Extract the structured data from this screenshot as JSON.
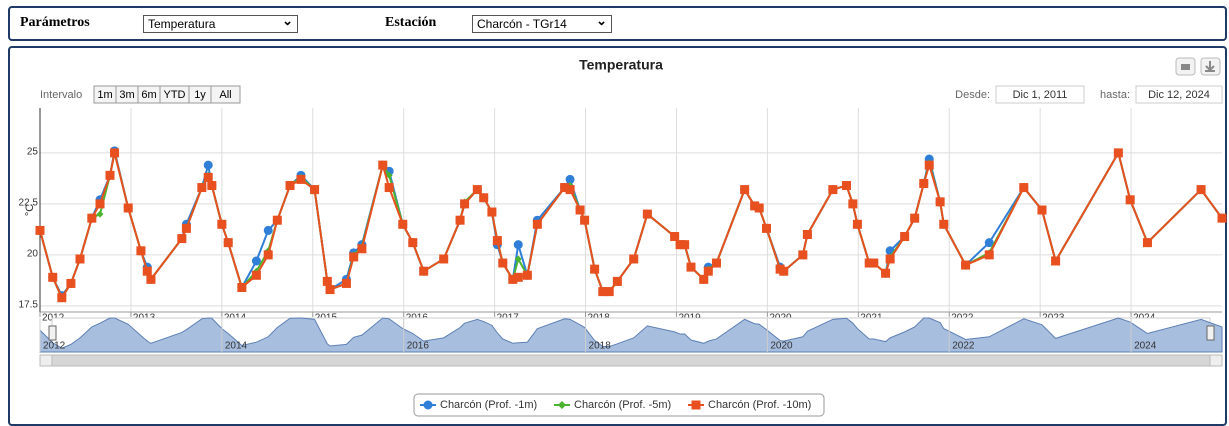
{
  "controls": {
    "param_label": "Parámetros",
    "param_value": "Temperatura",
    "station_label": "Estación",
    "station_value": "Charcón - TGr14"
  },
  "range_selector": {
    "label": "Intervalo",
    "buttons": [
      "1m",
      "3m",
      "6m",
      "YTD",
      "1y",
      "All"
    ],
    "from_label": "Desde:",
    "from_value": "Dic 1, 2011",
    "to_label": "hasta:",
    "to_value": "Dic 12, 2024"
  },
  "chart_data": {
    "type": "line",
    "title": "Temperatura",
    "y_label": "°C",
    "x": [
      2012.0,
      2012.14,
      2012.24,
      2012.34,
      2012.44,
      2012.57,
      2012.66,
      2012.77,
      2012.82,
      2012.97,
      2013.11,
      2013.18,
      2013.22,
      2013.56,
      2013.61,
      2013.78,
      2013.85,
      2013.89,
      2014.0,
      2014.07,
      2014.22,
      2014.38,
      2014.51,
      2014.61,
      2014.75,
      2014.87,
      2015.02,
      2015.16,
      2015.19,
      2015.37,
      2015.45,
      2015.54,
      2015.77,
      2015.84,
      2015.99,
      2016.1,
      2016.22,
      2016.44,
      2016.62,
      2016.67,
      2016.81,
      2016.88,
      2016.97,
      2017.03,
      2017.09,
      2017.2,
      2017.26,
      2017.36,
      2017.47,
      2017.77,
      2017.83,
      2017.94,
      2017.99,
      2018.1,
      2018.19,
      2018.26,
      2018.35,
      2018.53,
      2018.68,
      2018.98,
      2019.04,
      2019.09,
      2019.16,
      2019.3,
      2019.35,
      2019.44,
      2019.75,
      2019.86,
      2019.91,
      2019.99,
      2020.14,
      2020.18,
      2020.39,
      2020.44,
      2020.72,
      2020.87,
      2020.94,
      2020.99,
      2021.12,
      2021.17,
      2021.3,
      2021.35,
      2021.51,
      2021.62,
      2021.72,
      2021.78,
      2021.9,
      2021.94,
      2022.18,
      2022.44,
      2022.82,
      2023.02,
      2023.17,
      2023.86,
      2023.99,
      2024.18,
      2024.77,
      2025.0
    ],
    "series": [
      {
        "name": "Charcón (Prof. -1m)",
        "color": "#2f7ed8",
        "marker": "circle",
        "values": [
          21.2,
          18.9,
          18.0,
          18.6,
          19.8,
          21.8,
          22.7,
          23.9,
          25.1,
          22.3,
          20.2,
          19.4,
          18.8,
          20.8,
          21.5,
          23.3,
          24.4,
          23.4,
          21.5,
          20.6,
          18.4,
          19.7,
          21.2,
          21.7,
          23.4,
          23.9,
          23.2,
          18.7,
          18.3,
          18.8,
          20.1,
          20.5,
          24.4,
          24.1,
          21.5,
          20.6,
          19.2,
          19.8,
          21.7,
          22.5,
          23.2,
          22.8,
          22.1,
          20.5,
          19.6,
          18.8,
          20.5,
          19.0,
          21.7,
          23.3,
          23.7,
          22.2,
          21.7,
          19.3,
          18.2,
          18.2,
          18.7,
          19.8,
          22.0,
          20.9,
          20.5,
          20.5,
          19.4,
          18.8,
          19.4,
          19.6,
          23.2,
          22.4,
          22.3,
          21.3,
          19.4,
          19.2,
          20.0,
          21.0,
          23.2,
          23.4,
          22.5,
          21.5,
          19.6,
          19.6,
          19.1,
          20.2,
          20.9,
          21.8,
          23.5,
          24.7,
          22.6,
          21.5,
          19.5,
          20.6,
          23.3,
          22.2,
          19.7,
          25.0,
          22.7,
          20.6,
          23.2,
          21.8
        ]
      },
      {
        "name": "Charcón (Prof. -5m)",
        "color": "#4cb32e",
        "marker": "diamond",
        "values": [
          21.2,
          18.9,
          17.9,
          18.6,
          19.8,
          21.8,
          22.0,
          23.9,
          25.0,
          22.3,
          20.2,
          19.2,
          18.8,
          20.8,
          21.3,
          23.3,
          23.9,
          23.4,
          21.5,
          20.6,
          18.4,
          19.2,
          20.2,
          21.7,
          23.4,
          23.8,
          23.2,
          18.7,
          18.3,
          18.6,
          20.0,
          20.4,
          24.4,
          23.9,
          21.5,
          20.6,
          19.2,
          19.8,
          21.7,
          22.6,
          23.2,
          22.8,
          22.1,
          20.7,
          19.6,
          18.8,
          19.8,
          19.0,
          21.5,
          23.3,
          23.4,
          22.2,
          21.7,
          19.3,
          18.2,
          18.2,
          18.7,
          19.8,
          22.0,
          20.9,
          20.5,
          20.5,
          19.4,
          18.8,
          19.3,
          19.6,
          23.2,
          22.4,
          22.3,
          21.3,
          19.3,
          19.2,
          20.0,
          21.0,
          23.2,
          23.4,
          22.5,
          21.5,
          19.6,
          19.6,
          19.1,
          19.9,
          20.9,
          21.8,
          23.5,
          24.5,
          22.6,
          21.5,
          19.5,
          20.1,
          23.3,
          22.2,
          19.7,
          25.0,
          22.7,
          20.6,
          23.2,
          21.8
        ]
      },
      {
        "name": "Charcón (Prof. -10m)",
        "color": "#e8501f",
        "marker": "square",
        "values": [
          21.2,
          18.9,
          17.9,
          18.6,
          19.8,
          21.8,
          22.5,
          23.9,
          25.0,
          22.3,
          20.2,
          19.2,
          18.8,
          20.8,
          21.3,
          23.3,
          23.8,
          23.4,
          21.5,
          20.6,
          18.4,
          19.0,
          20.0,
          21.7,
          23.4,
          23.7,
          23.2,
          18.7,
          18.3,
          18.6,
          19.9,
          20.3,
          24.4,
          23.3,
          21.5,
          20.6,
          19.2,
          19.8,
          21.7,
          22.5,
          23.2,
          22.8,
          22.1,
          20.7,
          19.6,
          18.8,
          18.9,
          19.0,
          21.5,
          23.3,
          23.2,
          22.2,
          21.7,
          19.3,
          18.2,
          18.2,
          18.7,
          19.8,
          22.0,
          20.9,
          20.5,
          20.5,
          19.4,
          18.8,
          19.2,
          19.6,
          23.2,
          22.4,
          22.3,
          21.3,
          19.3,
          19.2,
          20.0,
          21.0,
          23.2,
          23.4,
          22.5,
          21.5,
          19.6,
          19.6,
          19.1,
          19.8,
          20.9,
          21.8,
          23.5,
          24.4,
          22.6,
          21.5,
          19.5,
          20.0,
          23.3,
          22.2,
          19.7,
          25.0,
          22.7,
          20.6,
          23.2,
          21.8
        ]
      }
    ],
    "xlim": [
      2012,
      2025
    ],
    "xticks": [
      2012,
      2013,
      2014,
      2015,
      2016,
      2017,
      2018,
      2019,
      2020,
      2021,
      2022,
      2023,
      2024
    ],
    "ylim": [
      17.2,
      27.2
    ],
    "yticks": [
      17.5,
      20,
      22.5,
      25
    ],
    "grid": true,
    "legend": "bottom",
    "navigator": {
      "ticks": [
        2012,
        2014,
        2016,
        2018,
        2020,
        2022,
        2024
      ]
    }
  }
}
